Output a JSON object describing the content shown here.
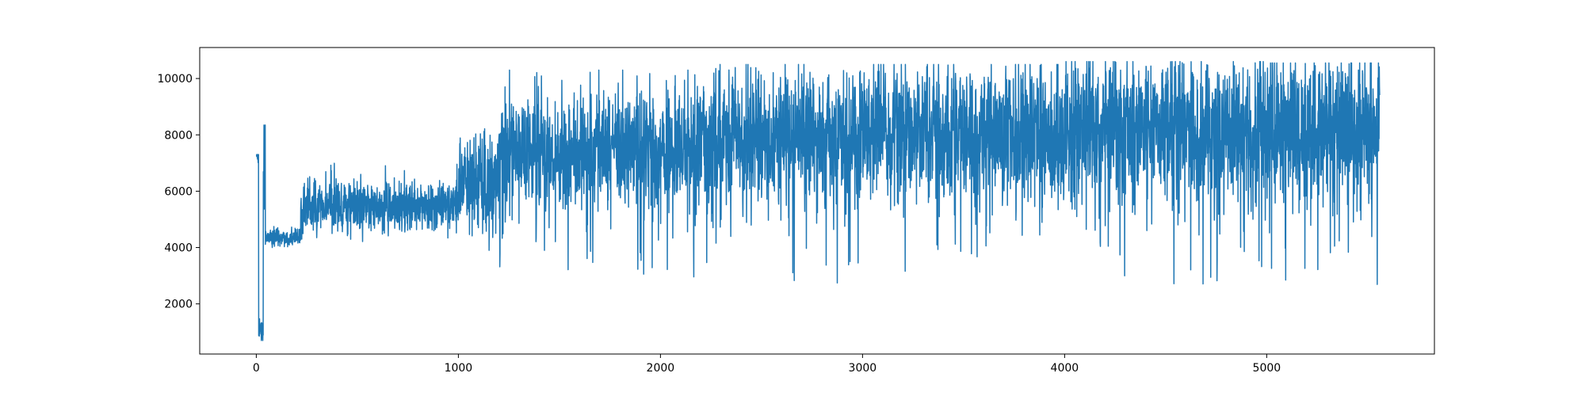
{
  "chart_data": {
    "type": "line",
    "title": "",
    "xlabel": "",
    "ylabel": "",
    "xlim": [
      -280,
      5830
    ],
    "ylim": [
      220,
      11100
    ],
    "grid": false,
    "legend": "none",
    "x_ticks": [
      0,
      1000,
      2000,
      3000,
      4000,
      5000
    ],
    "x_tick_labels": [
      "0",
      "1000",
      "2000",
      "3000",
      "4000",
      "5000"
    ],
    "y_ticks": [
      2000,
      4000,
      6000,
      8000,
      10000
    ],
    "y_tick_labels": [
      "2000",
      "4000",
      "6000",
      "8000",
      "10000"
    ],
    "series": [
      {
        "color": "#1f77b4",
        "n_points": 5560,
        "segments": [
          {
            "x_start": 0,
            "x_end": 12,
            "mean": 7100,
            "spread": 250,
            "max": 7300,
            "min": 6900
          },
          {
            "x_start": 12,
            "x_end": 35,
            "mean": 1000,
            "spread": 250,
            "max": 1900,
            "min": 700
          },
          {
            "x_start": 35,
            "x_end": 45,
            "mean": 6500,
            "spread": 1500,
            "max": 8350,
            "min": 4200
          },
          {
            "x_start": 45,
            "x_end": 220,
            "mean": 4350,
            "spread": 160,
            "max": 4800,
            "min": 4000
          },
          {
            "x_start": 220,
            "x_end": 1000,
            "mean": 5450,
            "spread": 420,
            "max": 7000,
            "min": 4200
          },
          {
            "x_start": 1000,
            "x_end": 1200,
            "mean": 6300,
            "spread": 800,
            "max": 9000,
            "min": 3900
          },
          {
            "x_start": 1200,
            "x_end": 2200,
            "mean": 7300,
            "spread": 1000,
            "max": 10300,
            "min": 2900
          },
          {
            "x_start": 2200,
            "x_end": 3000,
            "mean": 7800,
            "spread": 1150,
            "max": 10500,
            "min": 2600
          },
          {
            "x_start": 3000,
            "x_end": 4000,
            "mean": 8100,
            "spread": 1200,
            "max": 10500,
            "min": 3000
          },
          {
            "x_start": 4000,
            "x_end": 5000,
            "mean": 8100,
            "spread": 1250,
            "max": 10600,
            "min": 2700
          },
          {
            "x_start": 5000,
            "x_end": 5560,
            "mean": 8200,
            "spread": 1250,
            "max": 10550,
            "min": 2500
          }
        ]
      }
    ]
  }
}
